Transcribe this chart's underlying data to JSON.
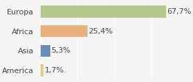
{
  "categories": [
    "America",
    "Asia",
    "Africa",
    "Europa"
  ],
  "values": [
    1.7,
    5.3,
    25.4,
    67.7
  ],
  "labels": [
    "1,7%",
    "5,3%",
    "25,4%",
    "67,7%"
  ],
  "bar_colors": [
    "#e8c97a",
    "#6b8cba",
    "#e8b07a",
    "#b5c98e"
  ],
  "background_color": "#f5f5f5",
  "xlim": [
    0,
    80
  ],
  "label_fontsize": 8,
  "tick_fontsize": 8
}
